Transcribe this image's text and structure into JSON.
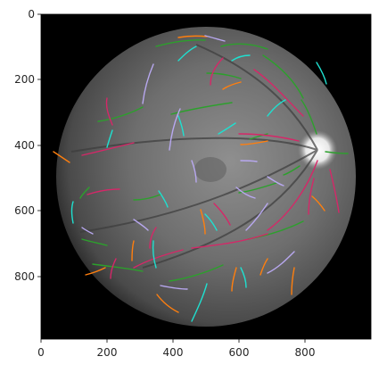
{
  "image": {
    "description_free": true,
    "background_color": "#000000",
    "fundus_color_center": "#8a8a8a",
    "fundus_color_edge": "#3a3a3a",
    "optic_disc_color": "#f2f2f2",
    "vessel_colors": [
      "#ff7f0e",
      "#2ca02c",
      "#d62768",
      "#1fe0d0",
      "#b8a8f0"
    ]
  },
  "axes": {
    "x_ticks": [
      "0",
      "200",
      "400",
      "600",
      "800"
    ],
    "y_ticks": [
      "0",
      "200",
      "400",
      "600",
      "800"
    ],
    "frame_color": "#000000"
  }
}
